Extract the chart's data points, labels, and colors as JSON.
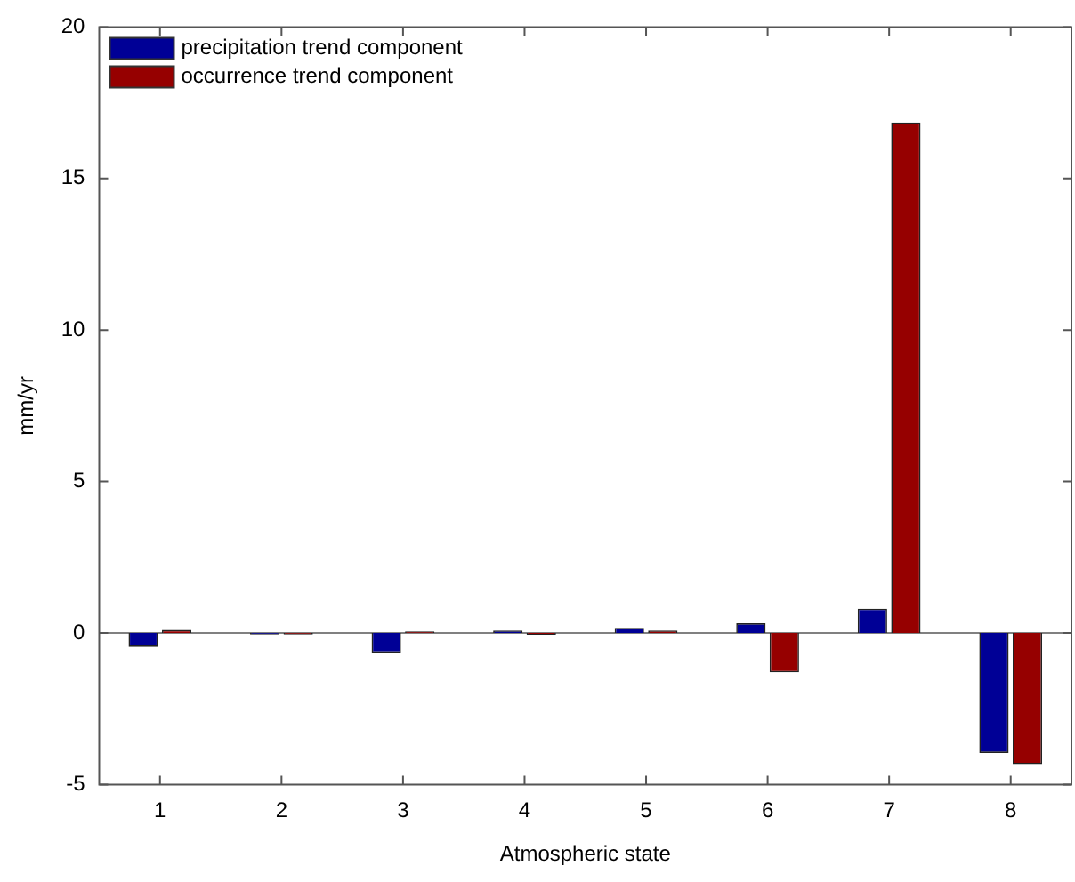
{
  "chart_data": {
    "type": "bar",
    "xlabel": "Atmospheric state",
    "ylabel": "mm/yr",
    "categories": [
      "1",
      "2",
      "3",
      "4",
      "5",
      "6",
      "7",
      "8"
    ],
    "series": [
      {
        "name": "precipitation trend component",
        "color": "#000096",
        "values": [
          -0.46,
          -0.05,
          -0.65,
          0.08,
          0.17,
          0.32,
          0.8,
          -3.96
        ]
      },
      {
        "name": "occurrence trend component",
        "color": "#960000",
        "values": [
          0.1,
          -0.05,
          0.05,
          -0.06,
          0.08,
          -1.3,
          16.85,
          -4.33
        ]
      }
    ],
    "ylim": [
      -5,
      20
    ],
    "yticks": [
      -5,
      0,
      5,
      10,
      15,
      20
    ],
    "grid": false,
    "ref_lines": [
      {
        "axis": "y",
        "value": 0,
        "color": "#808080"
      }
    ],
    "legend": "top left"
  }
}
